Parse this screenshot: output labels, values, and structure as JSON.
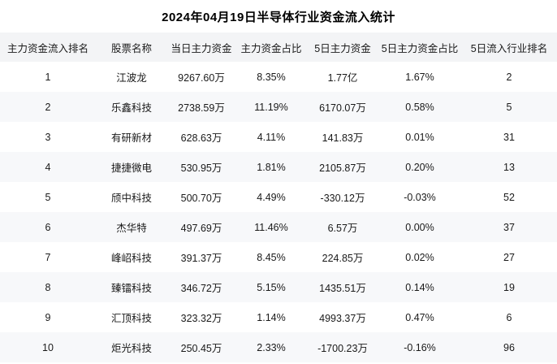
{
  "title": "2024年04月19日半导体行业资金流入统计",
  "colors": {
    "header_bg": "#f3f4f6",
    "stripe_bg": "#f7f8fa",
    "row_bg": "#ffffff",
    "text": "#1a1a1a"
  },
  "chart_data": {
    "type": "table",
    "title": "2024年04月19日半导体行业资金流入统计",
    "columns": [
      "主力资金流入排名",
      "股票名称",
      "当日主力资金",
      "主力资金占比",
      "5日主力资金",
      "5日主力资金占比",
      "5日流入行业排名"
    ],
    "rows": [
      [
        "1",
        "江波龙",
        "9267.60万",
        "8.35%",
        "1.77亿",
        "1.67%",
        "2"
      ],
      [
        "2",
        "乐鑫科技",
        "2738.59万",
        "11.19%",
        "6170.07万",
        "0.58%",
        "5"
      ],
      [
        "3",
        "有研新材",
        "628.63万",
        "4.11%",
        "141.83万",
        "0.01%",
        "31"
      ],
      [
        "4",
        "捷捷微电",
        "530.95万",
        "1.81%",
        "2105.87万",
        "0.20%",
        "13"
      ],
      [
        "5",
        "颀中科技",
        "500.70万",
        "4.49%",
        "-330.12万",
        "-0.03%",
        "52"
      ],
      [
        "6",
        "杰华特",
        "497.69万",
        "11.46%",
        "6.57万",
        "0.00%",
        "37"
      ],
      [
        "7",
        "峰岹科技",
        "391.37万",
        "8.45%",
        "224.85万",
        "0.02%",
        "27"
      ],
      [
        "8",
        "臻镭科技",
        "346.72万",
        "5.15%",
        "1435.51万",
        "0.14%",
        "19"
      ],
      [
        "9",
        "汇顶科技",
        "323.32万",
        "1.14%",
        "4993.37万",
        "0.47%",
        "6"
      ],
      [
        "10",
        "炬光科技",
        "250.45万",
        "2.33%",
        "-1700.23万",
        "-0.16%",
        "96"
      ]
    ],
    "layout": {
      "striped": true,
      "grid": false,
      "legend": "none",
      "header_position": "top",
      "cell_align": "center"
    }
  }
}
